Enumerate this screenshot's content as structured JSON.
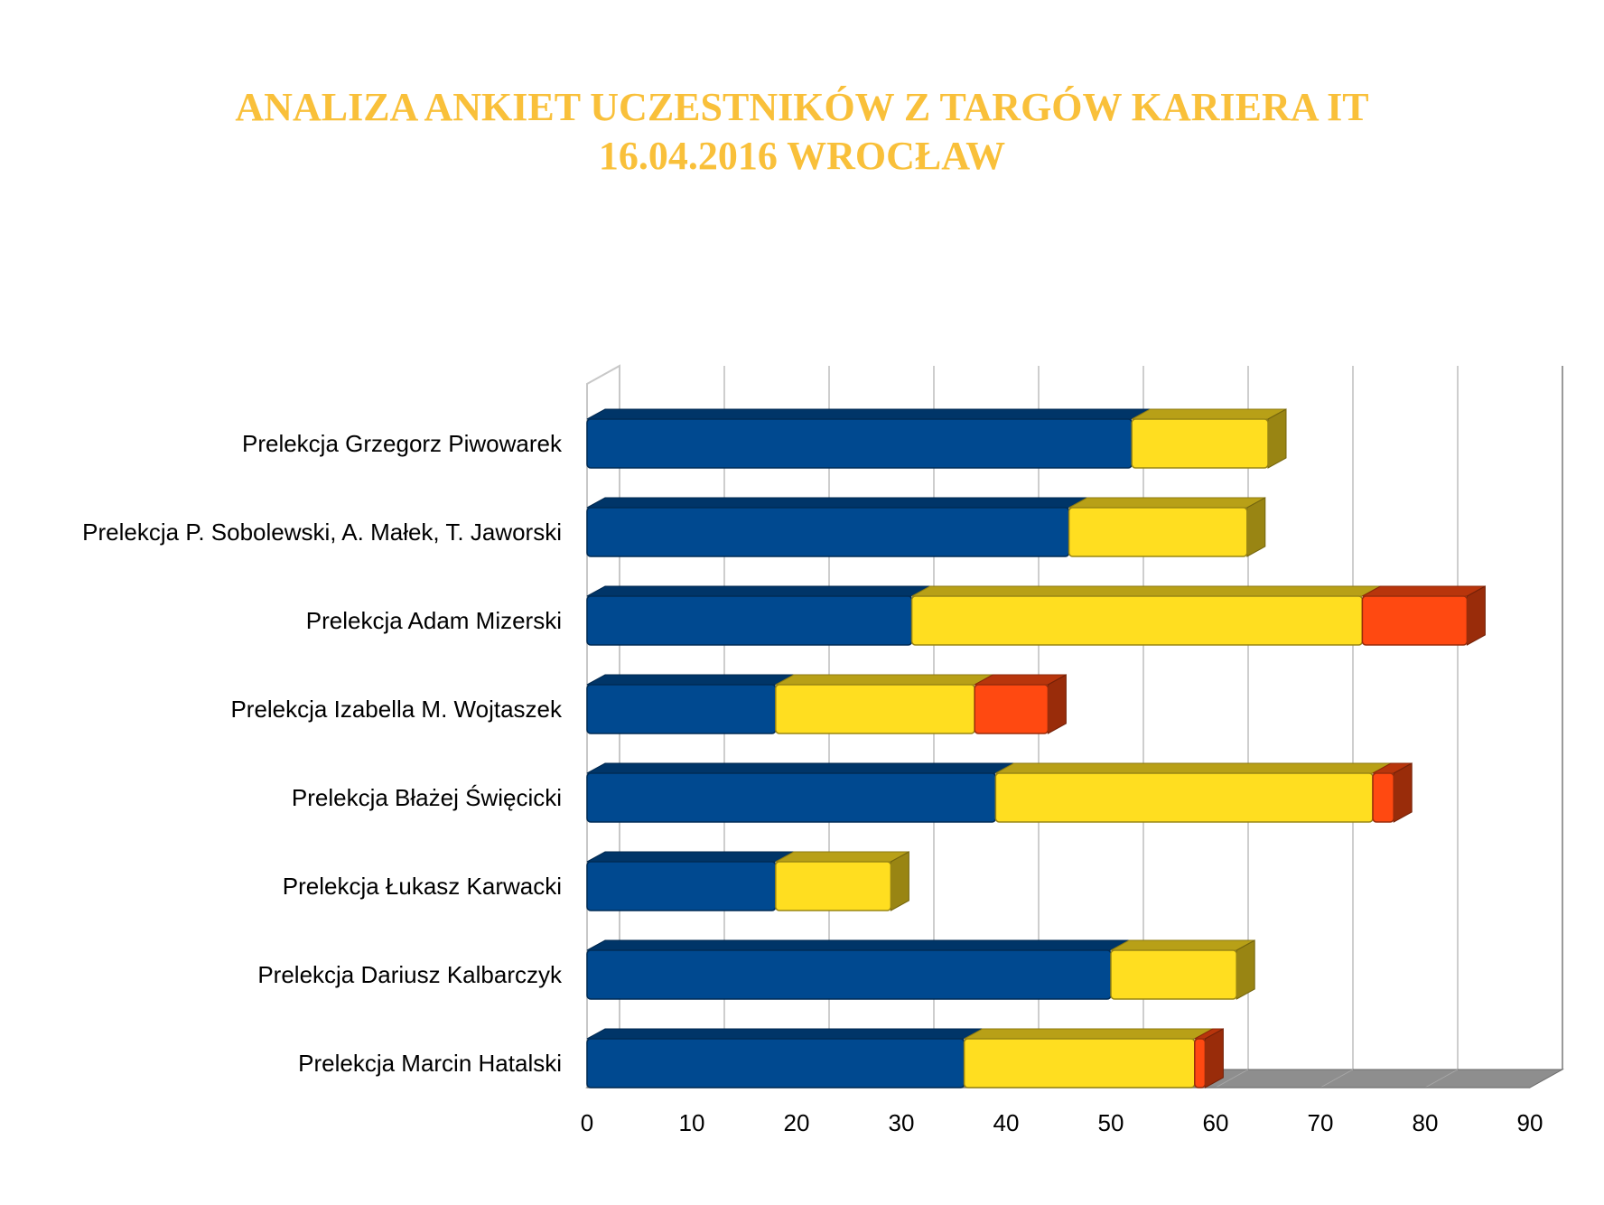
{
  "title": {
    "line1": "ANALIZA ANKIET UCZESTNIKÓW Z TARGÓW KARIERA IT",
    "line2": "16.04.2016 WROCŁAW"
  },
  "chart_data": {
    "type": "bar",
    "orientation": "horizontal",
    "stacked": true,
    "style_3d": true,
    "title": "ANALIZA ANKIET UCZESTNIKÓW Z TARGÓW KARIERA IT 16.04.2016 WROCŁAW",
    "categories": [
      "Prelekcja Grzegorz Piwowarek",
      "Prelekcja P. Sobolewski, A. Małek, T. Jaworski",
      "Prelekcja Adam Mizerski",
      "Prelekcja Izabella M. Wojtaszek",
      "Prelekcja Błażej Święcicki",
      "Prelekcja Łukasz Karwacki",
      "Prelekcja Dariusz Kalbarczyk",
      "Prelekcja Marcin Hatalski"
    ],
    "series": [
      {
        "color": "#004990",
        "values": [
          52,
          46,
          31,
          18,
          39,
          18,
          50,
          36
        ]
      },
      {
        "color": "#ffde20",
        "values": [
          13,
          17,
          43,
          19,
          36,
          11,
          12,
          22
        ]
      },
      {
        "color": "#ff4911",
        "values": [
          0,
          0,
          10,
          7,
          2,
          0,
          0,
          1
        ]
      }
    ],
    "xlim": [
      0,
      90
    ],
    "xticks": [
      0,
      10,
      20,
      30,
      40,
      50,
      60,
      70,
      80,
      90
    ],
    "grid": true,
    "legend": "none"
  }
}
